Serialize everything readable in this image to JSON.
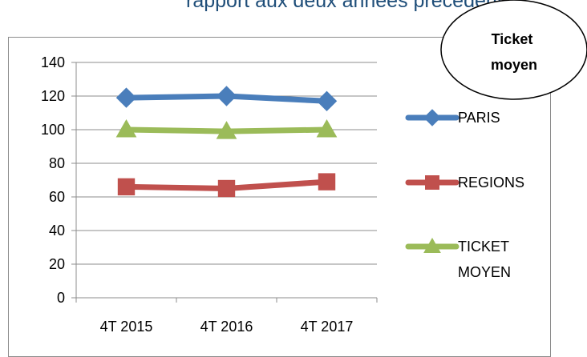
{
  "heading_fragment": "rapport aux deux années précédentes.",
  "badge": {
    "line1": "Ticket",
    "line2": "moyen"
  },
  "chart_data": {
    "type": "line",
    "categories": [
      "4T 2015",
      "4T 2016",
      "4T 2017"
    ],
    "series": [
      {
        "name": "PARIS",
        "values": [
          119,
          120,
          117
        ],
        "color": "#4a7ebb",
        "marker": "diamond"
      },
      {
        "name": "REGIONS",
        "values": [
          66,
          65,
          69
        ],
        "color": "#c0504d",
        "marker": "square"
      },
      {
        "name": "TICKET MOYEN",
        "values": [
          100,
          99,
          100
        ],
        "color": "#9bbb59",
        "marker": "triangle"
      }
    ],
    "yticks": [
      0,
      20,
      40,
      60,
      80,
      100,
      120,
      140
    ],
    "ylim": [
      0,
      140
    ],
    "grid": true,
    "legend": "right"
  }
}
